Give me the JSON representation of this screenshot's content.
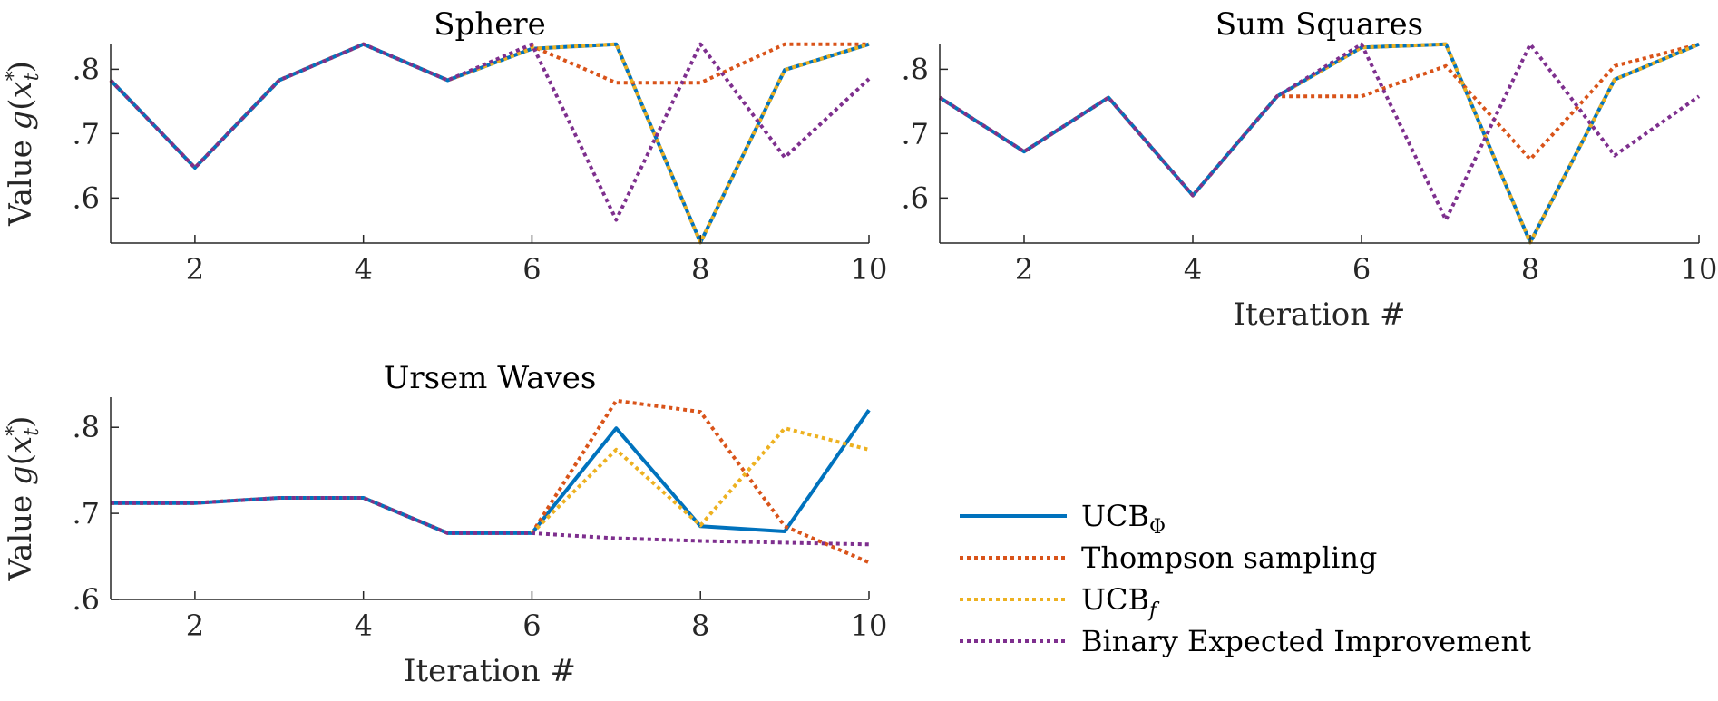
{
  "colors": {
    "ucb_phi": "#0072BD",
    "thompson": "#D95319",
    "ucb_f": "#EDB120",
    "bei": "#7E2F8E",
    "axis": "#262626"
  },
  "y_axis_label": "Value g(x*t)",
  "legend": [
    {
      "label": "UCBΦ",
      "color": "#0072BD",
      "style": "solid"
    },
    {
      "label": "Thompson sampling",
      "color": "#D95319",
      "style": "dotted"
    },
    {
      "label": "UCBf",
      "color": "#EDB120",
      "style": "dotted"
    },
    {
      "label": "Binary Expected Improvement",
      "color": "#7E2F8E",
      "style": "dotted"
    }
  ],
  "chart_data": [
    {
      "type": "line",
      "title": "Sphere",
      "xlabel": "",
      "ylabel": "Value g(x*t)",
      "xlim": [
        1,
        10
      ],
      "ylim": [
        0.53,
        0.84
      ],
      "xticks": [
        2,
        4,
        6,
        8,
        10
      ],
      "yticks": [
        0.6,
        0.7,
        0.8
      ],
      "x": [
        1,
        2,
        3,
        4,
        5,
        6,
        7,
        8,
        9,
        10
      ],
      "series": [
        {
          "name": "UCBΦ",
          "color": "#0072BD",
          "style": "solid",
          "values": [
            0.783,
            0.647,
            0.783,
            0.839,
            0.783,
            0.832,
            0.839,
            0.531,
            0.799,
            0.839
          ]
        },
        {
          "name": "Thompson sampling",
          "color": "#D95319",
          "style": "dotted",
          "values": [
            0.783,
            0.647,
            0.783,
            0.839,
            0.783,
            0.836,
            0.779,
            0.779,
            0.839,
            0.839
          ]
        },
        {
          "name": "UCBf",
          "color": "#EDB120",
          "style": "dotted",
          "values": [
            0.783,
            0.647,
            0.783,
            0.839,
            0.783,
            0.832,
            0.839,
            0.531,
            0.799,
            0.839
          ]
        },
        {
          "name": "Binary Expected Improvement",
          "color": "#7E2F8E",
          "style": "dotted",
          "values": [
            0.783,
            0.647,
            0.783,
            0.839,
            0.783,
            0.839,
            0.566,
            0.839,
            0.663,
            0.785
          ]
        }
      ]
    },
    {
      "type": "line",
      "title": "Sum Squares",
      "xlabel": "Iteration #",
      "ylabel": "",
      "xlim": [
        1,
        10
      ],
      "ylim": [
        0.53,
        0.84
      ],
      "xticks": [
        2,
        4,
        6,
        8,
        10
      ],
      "yticks": [
        0.6,
        0.7,
        0.8
      ],
      "x": [
        1,
        2,
        3,
        4,
        5,
        6,
        7,
        8,
        9,
        10
      ],
      "series": [
        {
          "name": "UCBΦ",
          "color": "#0072BD",
          "style": "solid",
          "values": [
            0.756,
            0.672,
            0.756,
            0.604,
            0.758,
            0.834,
            0.839,
            0.531,
            0.784,
            0.839
          ]
        },
        {
          "name": "Thompson sampling",
          "color": "#D95319",
          "style": "dotted",
          "values": [
            0.756,
            0.672,
            0.756,
            0.604,
            0.758,
            0.758,
            0.805,
            0.66,
            0.805,
            0.839
          ]
        },
        {
          "name": "UCBf",
          "color": "#EDB120",
          "style": "dotted",
          "values": [
            0.756,
            0.672,
            0.756,
            0.604,
            0.758,
            0.834,
            0.839,
            0.531,
            0.784,
            0.839
          ]
        },
        {
          "name": "Binary Expected Improvement",
          "color": "#7E2F8E",
          "style": "dotted",
          "values": [
            0.756,
            0.672,
            0.756,
            0.604,
            0.758,
            0.839,
            0.566,
            0.839,
            0.666,
            0.758
          ]
        }
      ]
    },
    {
      "type": "line",
      "title": "Ursem Waves",
      "xlabel": "Iteration #",
      "ylabel": "Value g(x*t)",
      "xlim": [
        1,
        10
      ],
      "ylim": [
        0.6,
        0.835
      ],
      "xticks": [
        2,
        4,
        6,
        8,
        10
      ],
      "yticks": [
        0.6,
        0.7,
        0.8
      ],
      "x": [
        1,
        2,
        3,
        4,
        5,
        6,
        7,
        8,
        9,
        10
      ],
      "series": [
        {
          "name": "UCBΦ",
          "color": "#0072BD",
          "style": "solid",
          "values": [
            0.712,
            0.712,
            0.718,
            0.718,
            0.677,
            0.677,
            0.799,
            0.685,
            0.679,
            0.82
          ]
        },
        {
          "name": "Thompson sampling",
          "color": "#D95319",
          "style": "dotted",
          "values": [
            0.712,
            0.712,
            0.718,
            0.718,
            0.677,
            0.677,
            0.831,
            0.818,
            0.685,
            0.643
          ]
        },
        {
          "name": "UCBf",
          "color": "#EDB120",
          "style": "dotted",
          "values": [
            0.712,
            0.712,
            0.718,
            0.718,
            0.677,
            0.677,
            0.774,
            0.686,
            0.799,
            0.774
          ]
        },
        {
          "name": "Binary Expected Improvement",
          "color": "#7E2F8E",
          "style": "dotted",
          "values": [
            0.712,
            0.712,
            0.718,
            0.718,
            0.677,
            0.677,
            0.671,
            0.668,
            0.666,
            0.664
          ]
        }
      ]
    }
  ]
}
